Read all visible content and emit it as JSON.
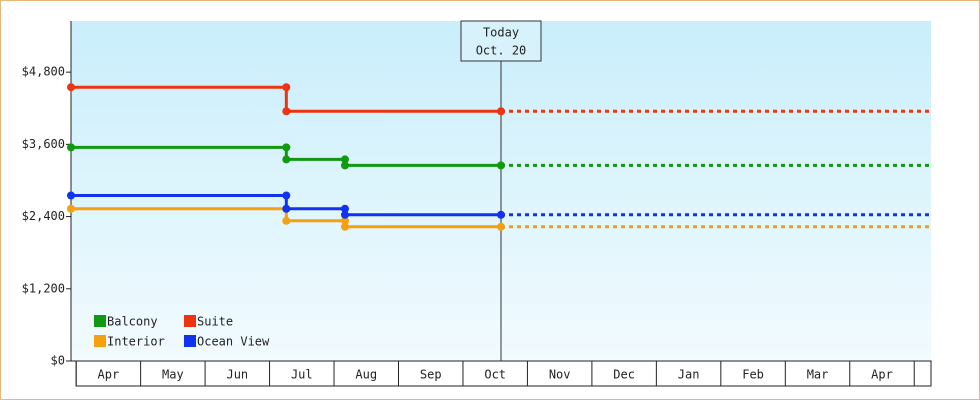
{
  "chart_data": {
    "type": "step-line",
    "categories": [
      "Apr",
      "May",
      "Jun",
      "Jul",
      "Aug",
      "Sep",
      "Oct",
      "Nov",
      "Dec",
      "Jan",
      "Feb",
      "Mar",
      "Apr"
    ],
    "xlim": [
      -0.08,
      13.26
    ],
    "ylim": [
      0,
      5650
    ],
    "yticks": [
      {
        "value": 0,
        "label": "$0"
      },
      {
        "value": 1200,
        "label": "$1,200"
      },
      {
        "value": 2400,
        "label": "$2,400"
      },
      {
        "value": 3600,
        "label": "$3,600"
      },
      {
        "value": 4800,
        "label": "$4,800"
      }
    ],
    "grid": false,
    "legend": "lower left",
    "today": {
      "x": 6.59,
      "label": "Today",
      "date": "Oct. 20"
    },
    "series": [
      {
        "name": "Balcony",
        "color": "#119911",
        "x": [
          -0.08,
          3.26,
          3.26,
          4.17,
          4.17,
          6.59
        ],
        "values": [
          3550,
          3550,
          3350,
          3350,
          3250,
          3250
        ]
      },
      {
        "name": "Suite",
        "color": "#ee3311",
        "x": [
          -0.08,
          3.26,
          3.26,
          6.59
        ],
        "values": [
          4550,
          4550,
          4150,
          4150
        ]
      },
      {
        "name": "Interior",
        "color": "#f5a00f",
        "x": [
          -0.08,
          3.26,
          3.26,
          4.17,
          4.17,
          6.59
        ],
        "values": [
          2530,
          2530,
          2330,
          2330,
          2230,
          2230
        ]
      },
      {
        "name": "Ocean View",
        "color": "#1133ee",
        "x": [
          -0.08,
          3.26,
          3.26,
          4.17,
          4.17,
          6.59
        ],
        "values": [
          2750,
          2750,
          2530,
          2530,
          2430,
          2430
        ]
      }
    ]
  }
}
